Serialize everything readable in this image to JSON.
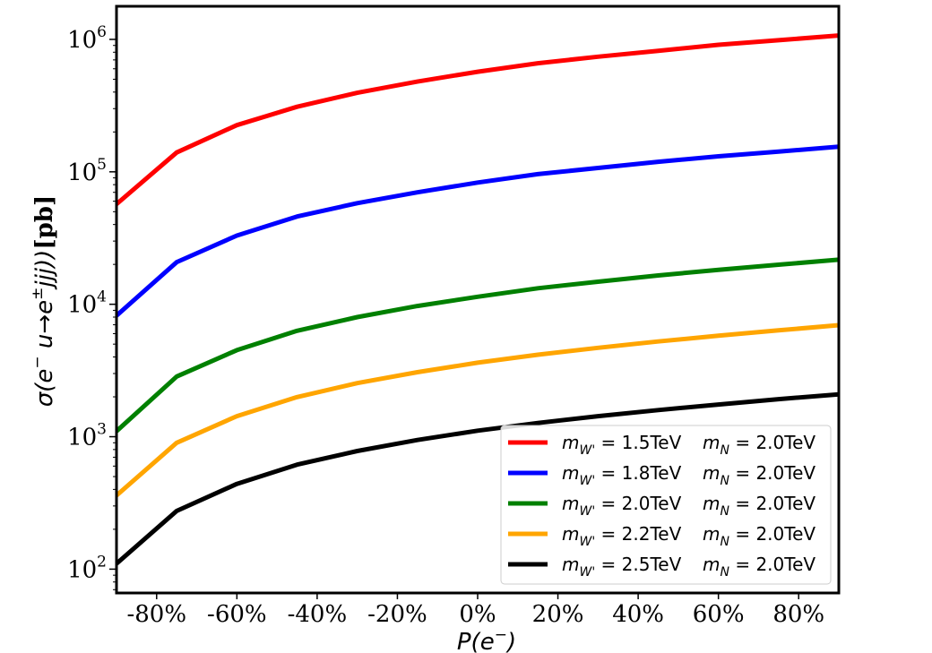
{
  "chart_data": {
    "type": "line",
    "xlabel_base": "P(e",
    "xlabel_sup": "−",
    "xlabel_end": ")",
    "ylabel_sigma": "σ(e",
    "ylabel_sup1": "−",
    "ylabel_mid": " u→e",
    "ylabel_sup2": "±",
    "ylabel_end": "jjj))",
    "ylabel_unit": "[pb]",
    "yscale": "log",
    "xlim": [
      -90,
      90
    ],
    "ylim_exp": [
      1.82,
      6.25
    ],
    "x_ticks": [
      {
        "value": -80,
        "label": "-80%"
      },
      {
        "value": -60,
        "label": "-60%"
      },
      {
        "value": -40,
        "label": "-40%"
      },
      {
        "value": -20,
        "label": "-20%"
      },
      {
        "value": 0,
        "label": "0%"
      },
      {
        "value": 20,
        "label": "20%"
      },
      {
        "value": 40,
        "label": "40%"
      },
      {
        "value": 60,
        "label": "60%"
      },
      {
        "value": 80,
        "label": "80%"
      }
    ],
    "y_ticks": [
      {
        "exp": 2,
        "base": "10",
        "sup": "2"
      },
      {
        "exp": 3,
        "base": "10",
        "sup": "3"
      },
      {
        "exp": 4,
        "base": "10",
        "sup": "4"
      },
      {
        "exp": 5,
        "base": "10",
        "sup": "5"
      },
      {
        "exp": 6,
        "base": "10",
        "sup": "6"
      }
    ],
    "x": [
      -90,
      -75,
      -60,
      -45,
      -30,
      -15,
      0,
      15,
      30,
      45,
      60,
      75,
      90
    ],
    "legend_position": "lower-right",
    "series": [
      {
        "name": "m_W' = 1.5TeV  m_N = 2.0TeV",
        "mw": "1.5TeV",
        "mn": "2.0TeV",
        "color": "#ff0000",
        "values": [
          57000,
          140000,
          225000,
          310000,
          395000,
          480000,
          570000,
          660000,
          740000,
          820000,
          910000,
          985000,
          1070000
        ]
      },
      {
        "name": "m_W' = 1.8TeV  m_N = 2.0TeV",
        "mw": "1.8TeV",
        "mn": "2.0TeV",
        "color": "#0000ff",
        "values": [
          8200,
          20800,
          33000,
          46000,
          58000,
          70000,
          83000,
          96000,
          107000,
          119000,
          131000,
          142000,
          155000
        ]
      },
      {
        "name": "m_W' = 2.0TeV  m_N = 2.0TeV",
        "mw": "2.0TeV",
        "mn": "2.0TeV",
        "color": "#008000",
        "values": [
          1100,
          2850,
          4500,
          6300,
          8000,
          9700,
          11400,
          13200,
          14800,
          16500,
          18200,
          19900,
          21700
        ]
      },
      {
        "name": "m_W' = 2.2TeV  m_N = 2.0TeV",
        "mw": "2.2TeV",
        "mn": "2.0TeV",
        "color": "#ffa500",
        "values": [
          360,
          900,
          1430,
          1990,
          2540,
          3070,
          3620,
          4160,
          4690,
          5240,
          5790,
          6350,
          6950
        ]
      },
      {
        "name": "m_W' = 2.5TeV  m_N = 2.0TeV",
        "mw": "2.5TeV",
        "mn": "2.0TeV",
        "color": "#000000",
        "values": [
          110,
          275,
          440,
          615,
          780,
          945,
          1110,
          1270,
          1430,
          1590,
          1750,
          1920,
          2090
        ]
      }
    ]
  }
}
